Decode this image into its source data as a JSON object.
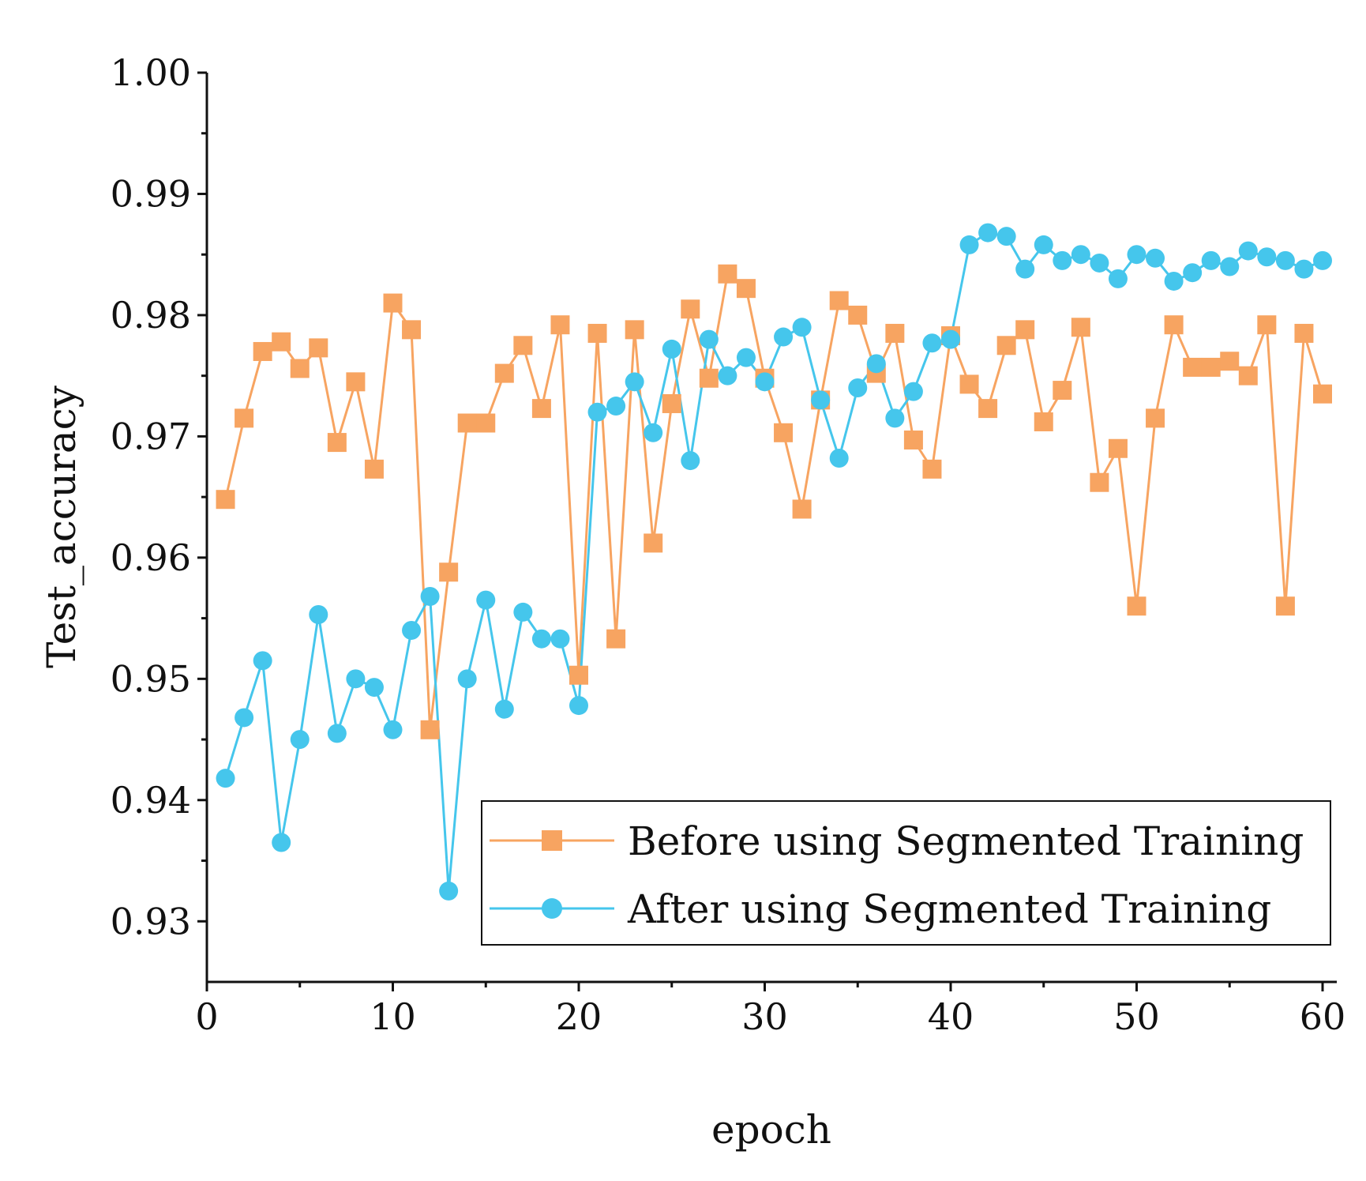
{
  "chart_data": {
    "type": "line",
    "title": "",
    "xlabel": "epoch",
    "ylabel": "Test_accuracy",
    "xlim": [
      0,
      61
    ],
    "ylim": [
      0.925,
      1.0
    ],
    "xticks": [
      0,
      10,
      20,
      30,
      40,
      50,
      60
    ],
    "xtick_labels": [
      "0",
      "10",
      "20",
      "30",
      "40",
      "50",
      "60"
    ],
    "yticks": [
      0.93,
      0.94,
      0.95,
      0.96,
      0.97,
      0.98,
      0.99,
      1.0
    ],
    "ytick_labels": [
      "0.93",
      "0.94",
      "0.95",
      "0.96",
      "0.97",
      "0.98",
      "0.99",
      "1.00"
    ],
    "legend_position": "bottom-right",
    "grid": false,
    "x": [
      1,
      2,
      3,
      4,
      5,
      6,
      7,
      8,
      9,
      10,
      11,
      12,
      13,
      14,
      15,
      16,
      17,
      18,
      19,
      20,
      21,
      22,
      23,
      24,
      25,
      26,
      27,
      28,
      29,
      30,
      31,
      32,
      33,
      34,
      35,
      36,
      37,
      38,
      39,
      40,
      41,
      42,
      43,
      44,
      45,
      46,
      47,
      48,
      49,
      50,
      51,
      52,
      53,
      54,
      55,
      56,
      57,
      58,
      59,
      60
    ],
    "series": [
      {
        "name": "Before using Segmented Training",
        "color": "#f7a461",
        "marker": "square",
        "values": [
          0.9648,
          0.9715,
          0.977,
          0.9778,
          0.9756,
          0.9773,
          0.9695,
          0.9745,
          0.9673,
          0.981,
          0.9788,
          0.9458,
          0.9588,
          0.9711,
          0.9711,
          0.9752,
          0.9775,
          0.9723,
          0.9792,
          0.9503,
          0.9785,
          0.9533,
          0.9788,
          0.9612,
          0.9727,
          0.9805,
          0.9748,
          0.9834,
          0.9822,
          0.9748,
          0.9703,
          0.964,
          0.973,
          0.9812,
          0.98,
          0.9752,
          0.9785,
          0.9697,
          0.9673,
          0.9783,
          0.9743,
          0.9723,
          0.9775,
          0.9788,
          0.9712,
          0.9738,
          0.979,
          0.9662,
          0.969,
          0.956,
          0.9715,
          0.9792,
          0.9757,
          0.9757,
          0.9762,
          0.975,
          0.9792,
          0.956,
          0.9785,
          0.9735
        ]
      },
      {
        "name": "After using Segmented Training",
        "color": "#45c6ec",
        "marker": "circle",
        "values": [
          0.9418,
          0.9468,
          0.9515,
          0.9365,
          0.945,
          0.9553,
          0.9455,
          0.95,
          0.9493,
          0.9458,
          0.954,
          0.9568,
          0.9325,
          0.95,
          0.9565,
          0.9475,
          0.9555,
          0.9533,
          0.9533,
          0.9478,
          0.972,
          0.9725,
          0.9745,
          0.9703,
          0.9772,
          0.968,
          0.978,
          0.975,
          0.9765,
          0.9745,
          0.9782,
          0.979,
          0.973,
          0.9682,
          0.974,
          0.976,
          0.9715,
          0.9737,
          0.9777,
          0.978,
          0.9858,
          0.9868,
          0.9865,
          0.9838,
          0.9858,
          0.9845,
          0.985,
          0.9843,
          0.983,
          0.985,
          0.9847,
          0.9828,
          0.9835,
          0.9845,
          0.984,
          0.9853,
          0.9848,
          0.9845,
          0.9838,
          0.9845
        ]
      }
    ]
  }
}
